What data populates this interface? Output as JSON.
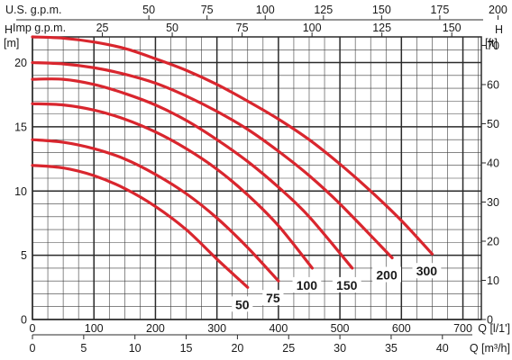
{
  "chart_data": {
    "type": "line",
    "colors": {
      "curve": "#d9262e",
      "grid_major": "#2a2a2a",
      "grid_minor": "#3c3c3c",
      "text": "#1a1a1a"
    },
    "grid": true,
    "x_primary": {
      "label": "Q [l/1']",
      "range": [
        0,
        730
      ],
      "ticks": [
        0,
        100,
        200,
        300,
        400,
        500,
        600,
        700
      ],
      "tick_labels": [
        "0",
        "100",
        "200",
        "300",
        "400",
        "500",
        "600",
        "700"
      ]
    },
    "x_secondary_m3h": {
      "label": "Q [m³/h]",
      "ticks": [
        0,
        5,
        10,
        15,
        20,
        25,
        30,
        35,
        40
      ],
      "tick_labels": [
        "0",
        "5",
        "10",
        "15",
        "20",
        "25",
        "30",
        "35",
        "40"
      ]
    },
    "x_top_us_gpm": {
      "label": "U.S. g.p.m.",
      "ticks": [
        50,
        75,
        100,
        125,
        150,
        175,
        200
      ],
      "tick_labels": [
        "50",
        "75",
        "100",
        "125",
        "150",
        "175",
        "200"
      ]
    },
    "x_top_imp_gpm": {
      "label": "Imp g.p.m.",
      "ticks": [
        25,
        50,
        75,
        100,
        125,
        150,
        175
      ],
      "tick_labels": [
        "25",
        "50",
        "75",
        "100",
        "125",
        "150",
        "175"
      ]
    },
    "y_left": {
      "label": "[m]",
      "axis_title": "H",
      "range": [
        0,
        22
      ],
      "ticks": [
        0,
        5,
        10,
        15,
        20
      ],
      "tick_labels": [
        "0",
        "5",
        "10",
        "15",
        "20"
      ]
    },
    "y_right": {
      "label": "[ft]",
      "axis_title": "H",
      "ticks": [
        0,
        10,
        20,
        30,
        40,
        50,
        60,
        70
      ],
      "tick_labels": [
        "0",
        "10",
        "20",
        "30",
        "40",
        "50",
        "60",
        "70"
      ]
    },
    "series": [
      {
        "name": "50",
        "x": [
          0,
          50,
          100,
          150,
          200,
          250,
          300,
          350
        ],
        "y": [
          12,
          11.8,
          11.2,
          10.2,
          8.8,
          7.0,
          4.7,
          2.5
        ]
      },
      {
        "name": "75",
        "x": [
          0,
          50,
          100,
          150,
          200,
          250,
          300,
          350,
          400
        ],
        "y": [
          14,
          13.8,
          13.3,
          12.5,
          11.3,
          9.8,
          7.9,
          5.6,
          3.0
        ]
      },
      {
        "name": "100",
        "x": [
          0,
          50,
          100,
          150,
          200,
          250,
          300,
          350,
          400,
          455
        ],
        "y": [
          16.8,
          16.7,
          16.3,
          15.6,
          14.6,
          13.3,
          11.7,
          9.7,
          7.3,
          4.0
        ]
      },
      {
        "name": "150",
        "x": [
          0,
          50,
          100,
          150,
          200,
          250,
          300,
          350,
          400,
          450,
          520
        ],
        "y": [
          18.7,
          18.7,
          18.3,
          17.6,
          16.7,
          15.5,
          14.0,
          12.3,
          10.3,
          8.0,
          4.0
        ]
      },
      {
        "name": "200",
        "x": [
          0,
          50,
          100,
          150,
          200,
          250,
          300,
          350,
          400,
          450,
          500,
          585
        ],
        "y": [
          20,
          19.9,
          19.6,
          19.1,
          18.4,
          17.4,
          16.2,
          14.8,
          13.1,
          11.2,
          9.0,
          4.8
        ]
      },
      {
        "name": "300",
        "x": [
          0,
          50,
          100,
          150,
          200,
          250,
          300,
          350,
          400,
          450,
          500,
          550,
          600,
          650
        ],
        "y": [
          22,
          21.9,
          21.6,
          21.1,
          20.3,
          19.4,
          18.3,
          17.0,
          15.6,
          14.0,
          12.1,
          10.0,
          7.7,
          5.1
        ]
      }
    ]
  }
}
